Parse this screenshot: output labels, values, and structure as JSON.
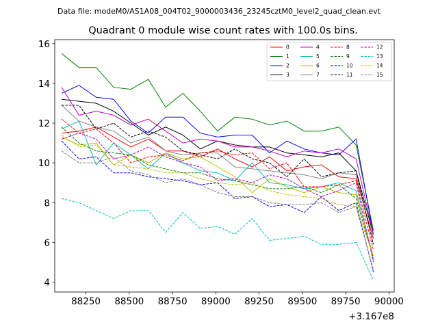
{
  "header": {
    "data_file_line": "Data file: modeM0/AS1A08_004T02_9000003436_23245cztM0_level2_quad_clean.evt"
  },
  "chart_data": {
    "type": "line",
    "title": "Quadrant 0 module wise count rates with 100.0s bins.",
    "xlabel": "",
    "ylabel": "",
    "x_offset_label": "+3.167e8",
    "xlim": [
      88070,
      90030
    ],
    "ylim": [
      3.5,
      16.2
    ],
    "x_ticks": [
      88250,
      88500,
      88750,
      89000,
      89250,
      89500,
      89750,
      90000
    ],
    "x_tick_labels": [
      "88250",
      "88500",
      "88750",
      "89000",
      "89250",
      "89500",
      "89750",
      "90000"
    ],
    "y_ticks": [
      4,
      6,
      8,
      10,
      12,
      14,
      16
    ],
    "y_tick_labels": [
      "4",
      "6",
      "8",
      "10",
      "12",
      "14",
      "16"
    ],
    "grid": false,
    "legend_position": "top-right",
    "x": [
      88110,
      88210,
      88310,
      88410,
      88510,
      88610,
      88710,
      88810,
      88910,
      89010,
      89110,
      89210,
      89310,
      89410,
      89510,
      89610,
      89710,
      89810,
      89910
    ],
    "series": [
      {
        "name": "0",
        "color": "#ff0000",
        "dash": "solid",
        "values": [
          11.5,
          11.6,
          11.8,
          11.3,
          10.8,
          11.2,
          10.6,
          10.6,
          10.3,
          10.7,
          10.2,
          9.8,
          10.3,
          9.6,
          9.8,
          9.9,
          9.3,
          9.2,
          6.2
        ]
      },
      {
        "name": "1",
        "color": "#008000",
        "dash": "solid",
        "values": [
          15.5,
          14.8,
          14.8,
          13.8,
          13.7,
          14.2,
          12.8,
          13.5,
          12.6,
          11.6,
          12.3,
          12.2,
          11.9,
          12.1,
          11.6,
          11.6,
          11.8,
          10.9,
          6.6
        ]
      },
      {
        "name": "2",
        "color": "#0000ff",
        "dash": "solid",
        "values": [
          13.5,
          13.9,
          13.3,
          13.2,
          12.1,
          11.5,
          12.3,
          12.3,
          11.5,
          11.3,
          11.4,
          11.4,
          10.5,
          11.1,
          10.7,
          10.5,
          10.4,
          11.2,
          6.4
        ]
      },
      {
        "name": "3",
        "color": "#000000",
        "dash": "solid",
        "values": [
          13.2,
          13.1,
          13.0,
          12.6,
          12.0,
          11.4,
          11.8,
          11.4,
          10.7,
          11.1,
          10.9,
          10.8,
          10.8,
          10.5,
          10.4,
          10.3,
          10.5,
          9.6,
          6.4
        ]
      },
      {
        "name": "4",
        "color": "#bf00bf",
        "dash": "solid",
        "values": [
          13.8,
          12.4,
          12.6,
          12.4,
          11.9,
          12.2,
          11.6,
          11.0,
          11.2,
          11.1,
          10.8,
          10.8,
          10.6,
          10.3,
          10.6,
          10.5,
          10.7,
          10.2,
          6.4
        ]
      },
      {
        "name": "5",
        "color": "#00bfbf",
        "dash": "solid",
        "values": [
          11.7,
          12.1,
          9.9,
          11.0,
          10.4,
          9.7,
          10.5,
          10.0,
          9.6,
          9.5,
          9.1,
          10.0,
          9.0,
          8.9,
          8.7,
          8.8,
          9.0,
          8.6,
          5.1
        ]
      },
      {
        "name": "6",
        "color": "#bfbf00",
        "dash": "solid",
        "values": [
          11.3,
          10.9,
          11.0,
          9.9,
          10.4,
          10.0,
          10.5,
          10.2,
          10.3,
          9.8,
          9.3,
          8.5,
          9.2,
          8.8,
          8.5,
          8.8,
          8.5,
          8.4,
          5.3
        ]
      },
      {
        "name": "7",
        "color": "#808080",
        "dash": "solid",
        "values": [
          12.9,
          12.1,
          11.8,
          11.6,
          11.0,
          11.3,
          10.6,
          10.4,
          10.5,
          10.5,
          9.8,
          9.7,
          9.6,
          9.5,
          9.4,
          9.2,
          9.5,
          9.4,
          5.9
        ]
      },
      {
        "name": "8",
        "color": "#ff0000",
        "dash": "dashed",
        "values": [
          12.2,
          11.5,
          11.7,
          11.0,
          10.0,
          10.3,
          10.4,
          10.1,
          10.5,
          10.6,
          10.4,
          10.5,
          9.7,
          10.0,
          8.8,
          8.8,
          8.9,
          9.1,
          5.6
        ]
      },
      {
        "name": "9",
        "color": "#008000",
        "dash": "dashed",
        "values": [
          11.8,
          11.0,
          10.6,
          10.5,
          10.4,
          9.9,
          9.7,
          9.5,
          9.5,
          9.2,
          9.1,
          8.9,
          8.7,
          8.7,
          8.8,
          8.5,
          8.9,
          8.2,
          5.2
        ]
      },
      {
        "name": "10",
        "color": "#0000ff",
        "dash": "dashed",
        "values": [
          11.1,
          10.2,
          10.3,
          9.5,
          9.5,
          9.3,
          9.2,
          9.1,
          8.9,
          9.0,
          8.2,
          8.3,
          7.8,
          7.9,
          7.5,
          8.3,
          7.6,
          8.0,
          4.5
        ]
      },
      {
        "name": "11",
        "color": "#000000",
        "dash": "dashed",
        "values": [
          12.9,
          12.9,
          11.7,
          12.0,
          11.3,
          11.6,
          11.3,
          10.6,
          10.4,
          10.2,
          10.7,
          10.2,
          10.0,
          9.3,
          10.2,
          9.3,
          9.5,
          9.6,
          5.9
        ]
      },
      {
        "name": "12",
        "color": "#bf00bf",
        "dash": "dashed",
        "values": [
          11.2,
          11.5,
          11.2,
          10.2,
          10.4,
          10.8,
          10.3,
          10.0,
          9.8,
          9.1,
          9.2,
          9.0,
          9.4,
          9.2,
          8.7,
          8.3,
          8.6,
          9.0,
          5.0
        ]
      },
      {
        "name": "13",
        "color": "#00bfbf",
        "dash": "dashed",
        "values": [
          8.2,
          8.0,
          7.6,
          7.2,
          7.6,
          7.6,
          6.5,
          7.5,
          6.7,
          6.8,
          6.4,
          7.2,
          6.1,
          6.2,
          6.3,
          5.9,
          5.9,
          6.0,
          4.1
        ]
      },
      {
        "name": "14",
        "color": "#bfbf00",
        "dash": "dashed",
        "values": [
          11.4,
          10.8,
          10.9,
          9.9,
          9.8,
          9.7,
          9.5,
          9.5,
          9.2,
          9.0,
          8.9,
          9.0,
          8.6,
          8.4,
          8.3,
          8.2,
          7.9,
          7.8,
          5.3
        ]
      },
      {
        "name": "15",
        "color": "#808080",
        "dash": "dashed",
        "values": [
          10.6,
          10.0,
          10.0,
          10.3,
          9.6,
          9.4,
          9.0,
          9.2,
          8.9,
          8.5,
          8.3,
          8.3,
          8.0,
          7.9,
          7.9,
          8.0,
          7.5,
          7.8,
          4.6
        ]
      }
    ]
  }
}
